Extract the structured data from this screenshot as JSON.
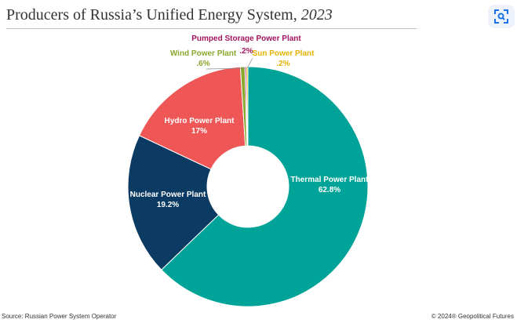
{
  "header": {
    "title_main": "Producers of Russia’s Unified Energy System,",
    "title_year": "2023"
  },
  "toolbar": {
    "lens_icon": "image-search-icon"
  },
  "footer": {
    "source": "Source: Russian Power System Operator",
    "copyright": "© 2024® Geopolitical Futures"
  },
  "chart_data": {
    "type": "pie",
    "title": "Producers of Russia’s Unified Energy System, 2023",
    "donut": true,
    "start_angle_deg": 0,
    "direction": "clockwise",
    "series": [
      {
        "name": "Thermal Power Plant",
        "value": 62.8,
        "label": "62.8%",
        "color": "#00a397"
      },
      {
        "name": "Nuclear Power Plant",
        "value": 19.2,
        "label": "19.2%",
        "color": "#0b3a63"
      },
      {
        "name": "Hydro Power Plant",
        "value": 17,
        "label": "17%",
        "color": "#ef5656"
      },
      {
        "name": "Wind Power Plant",
        "value": 0.6,
        "label": ".6%",
        "color": "#8aa82c"
      },
      {
        "name": "Pumped Storage Power Plant",
        "value": 0.2,
        "label": ".2%",
        "color": "#a3145e"
      },
      {
        "name": "Sun Power Plant",
        "value": 0.2,
        "label": ".2%",
        "color": "#e5b300"
      }
    ]
  }
}
